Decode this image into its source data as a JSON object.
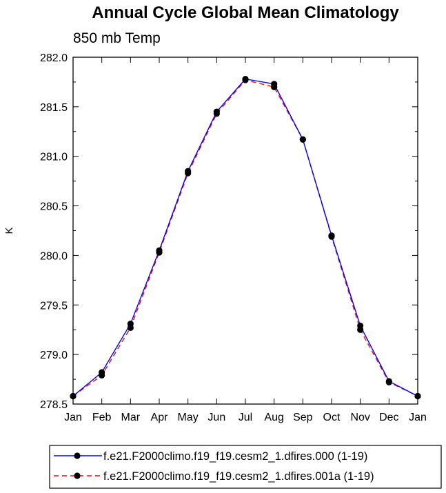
{
  "chart_data": {
    "type": "line",
    "title": "Annual Cycle Global Mean Climatology",
    "subtitle": "850 mb Temp",
    "xlabel": "",
    "ylabel": "K",
    "categories": [
      "Jan",
      "Feb",
      "Mar",
      "Apr",
      "May",
      "Jun",
      "Jul",
      "Aug",
      "Sep",
      "Oct",
      "Nov",
      "Dec",
      "Jan"
    ],
    "ylim": [
      278.5,
      282.0
    ],
    "yticks": [
      "278.5",
      "279.0",
      "279.5",
      "280.0",
      "280.5",
      "281.0",
      "281.5",
      "282.0"
    ],
    "legend_position": "bottom",
    "series": [
      {
        "name": "f.e21.F2000climo.f19_f19.cesm2_1.dfires.000 (1-19)",
        "color": "#0000ff",
        "dash": "solid",
        "values": [
          278.58,
          278.82,
          279.31,
          280.05,
          280.85,
          281.45,
          281.78,
          281.73,
          281.17,
          280.2,
          279.29,
          278.73,
          278.58
        ]
      },
      {
        "name": "f.e21.F2000climo.f19_f19.cesm2_1.dfires.001a (1-19)",
        "color": "#ff0000",
        "dash": "dashed",
        "values": [
          278.58,
          278.79,
          279.27,
          280.03,
          280.83,
          281.43,
          281.77,
          281.7,
          281.17,
          280.19,
          279.25,
          278.72,
          278.58
        ]
      }
    ]
  }
}
